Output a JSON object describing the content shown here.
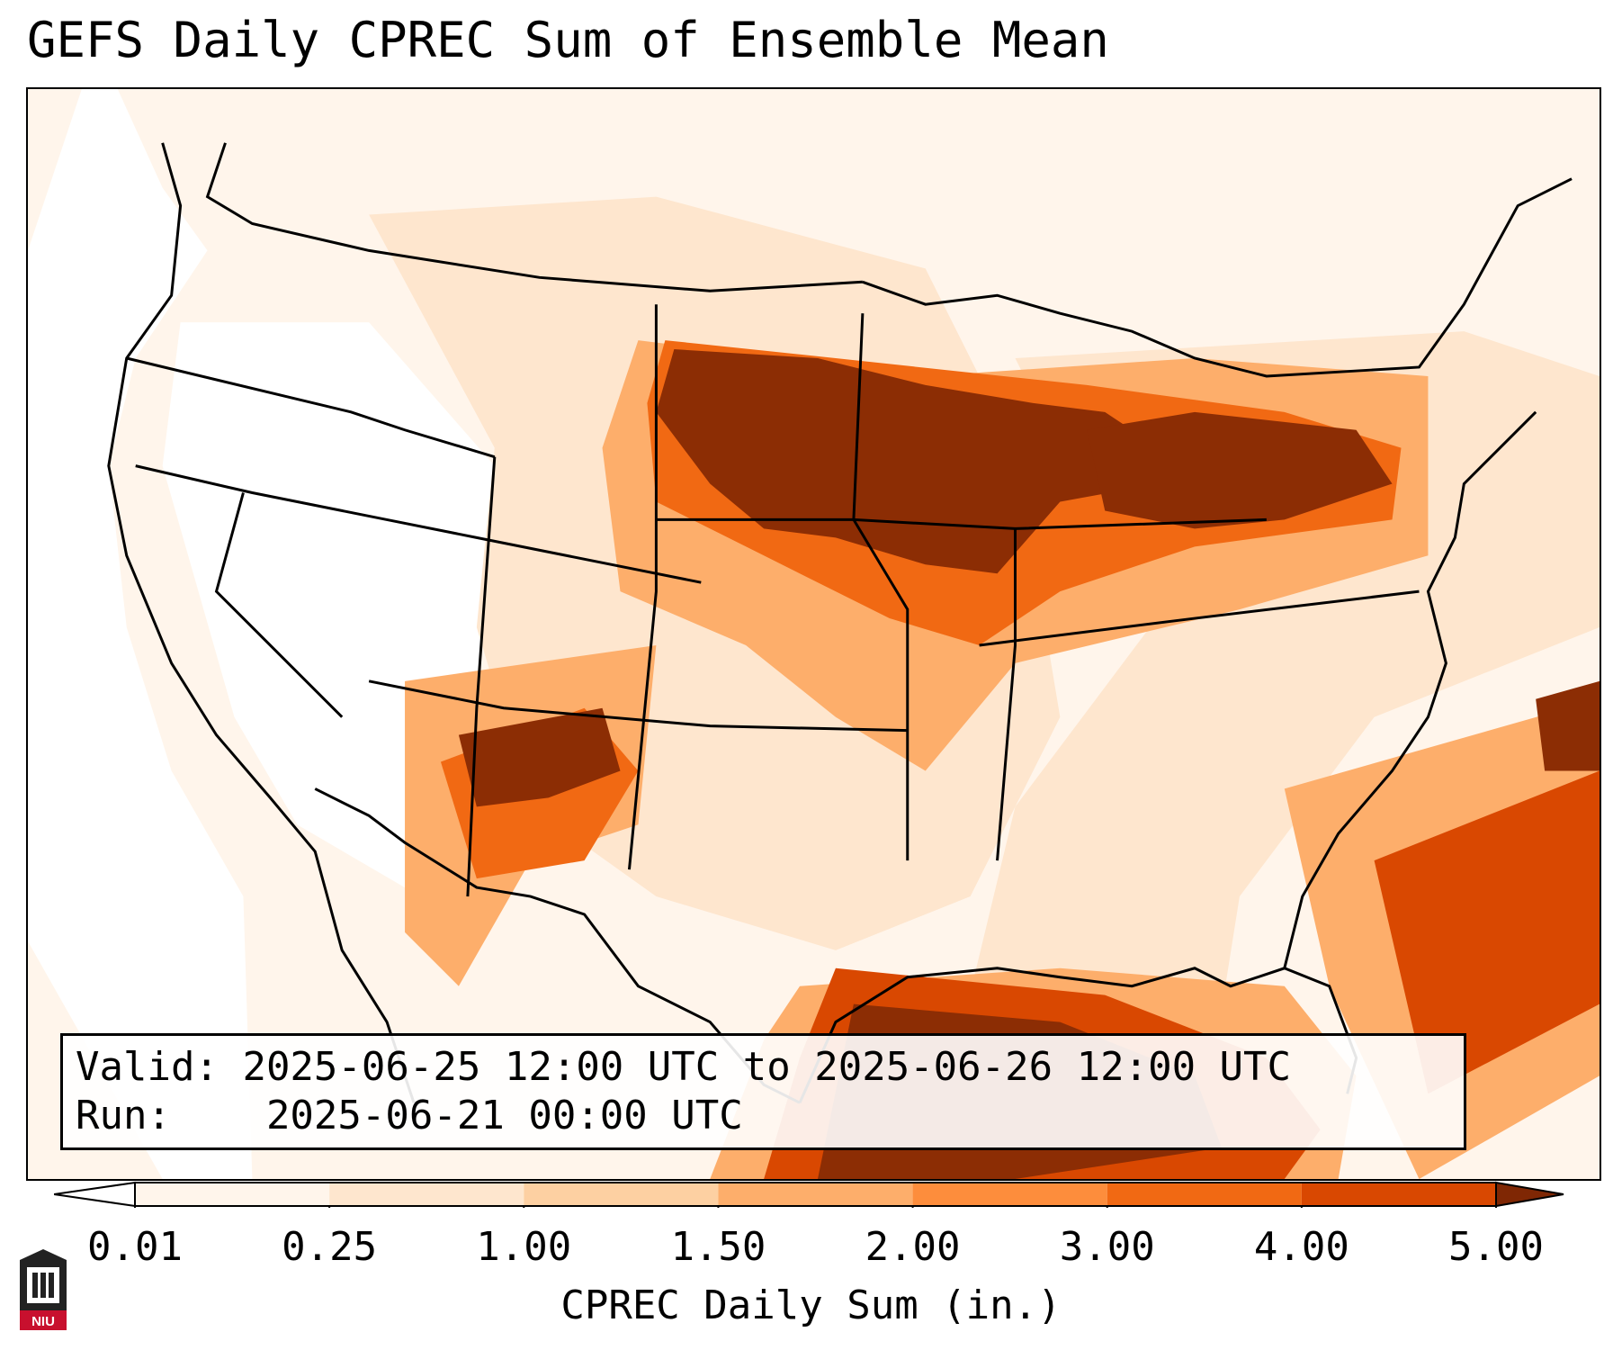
{
  "title": "GEFS Daily CPREC Sum of Ensemble Mean",
  "info": {
    "valid_label": "Valid:",
    "valid_value": "2025-06-25 12:00 UTC to 2025-06-26 12:00 UTC",
    "run_label": "Run:",
    "run_value": "2025-06-21 00:00 UTC"
  },
  "colorbar": {
    "label": "CPREC Daily Sum (in.)",
    "ticks": [
      "0.01",
      "0.25",
      "1.00",
      "1.50",
      "2.00",
      "3.00",
      "4.00",
      "5.00"
    ],
    "colors": [
      "#fff5eb",
      "#fee6ce",
      "#fdd0a2",
      "#fdae6b",
      "#fd8d3c",
      "#f16913",
      "#d94801",
      "#8c2d04"
    ],
    "under_color": "#ffffff",
    "over_color": "#7f2704"
  },
  "logo": {
    "text": "NIU",
    "color": "#c8102e"
  }
}
